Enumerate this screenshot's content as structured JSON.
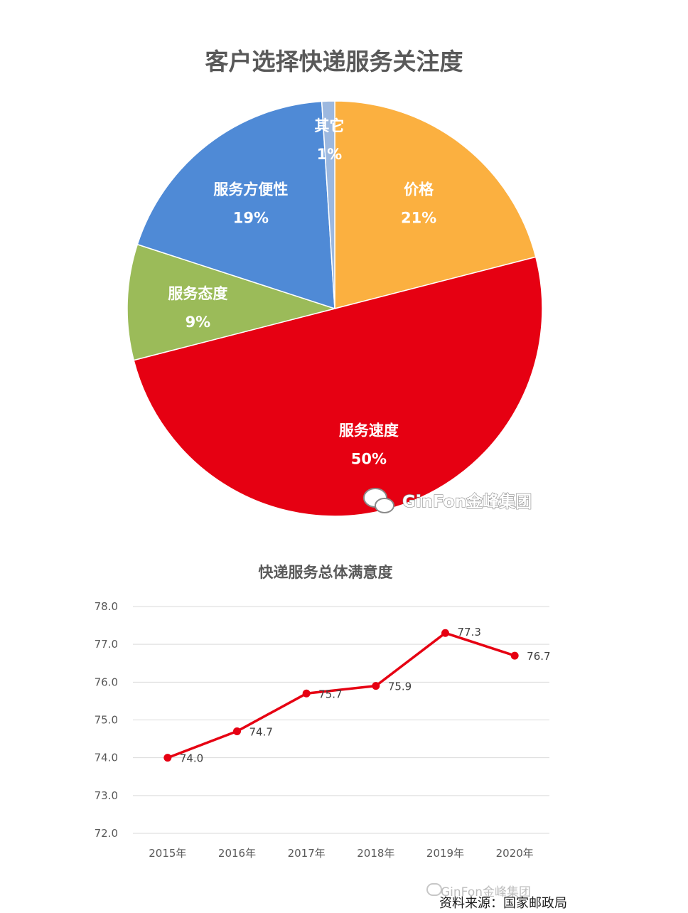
{
  "colors": {
    "price": "#fbb040",
    "speed": "#e60012",
    "attitude": "#9bbb59",
    "convenience": "#4f8ad6",
    "other": "#9cb8df",
    "line": "#e60012",
    "text": "#595959"
  },
  "chart_data": [
    {
      "type": "pie",
      "title": "客户选择快递服务关注度",
      "slices": [
        {
          "label": "价格",
          "value": 21,
          "pct_text": "21%",
          "color_key": "price"
        },
        {
          "label": "服务速度",
          "value": 50,
          "pct_text": "50%",
          "color_key": "speed"
        },
        {
          "label": "服务态度",
          "value": 9,
          "pct_text": "9%",
          "color_key": "attitude"
        },
        {
          "label": "服务方便性",
          "value": 19,
          "pct_text": "19%",
          "color_key": "convenience"
        },
        {
          "label": "其它",
          "value": 1,
          "pct_text": "1%",
          "color_key": "other"
        }
      ],
      "start": "12 o'clock",
      "direction": "clockwise",
      "legend": "none",
      "watermark": {
        "icon": "wechat-icon",
        "text": "GinFon金峰集团"
      }
    },
    {
      "type": "line",
      "title": "快递服务总体满意度",
      "categories": [
        "2015年",
        "2016年",
        "2017年",
        "2018年",
        "2019年",
        "2020年"
      ],
      "series": [
        {
          "values": [
            74.0,
            74.7,
            75.7,
            75.9,
            77.3,
            76.7
          ]
        }
      ],
      "data_labels": [
        "74.0",
        "74.7",
        "75.7",
        "75.9",
        "77.3",
        "76.7"
      ],
      "ylim": [
        72.0,
        78.0
      ],
      "yticks": [
        "72.0",
        "73.0",
        "74.0",
        "75.0",
        "76.0",
        "77.0",
        "78.0"
      ],
      "grid": "horizontal",
      "legend": "none"
    }
  ],
  "footer": {
    "watermark": "GinFon金峰集团",
    "source": "资料来源：国家邮政局"
  }
}
